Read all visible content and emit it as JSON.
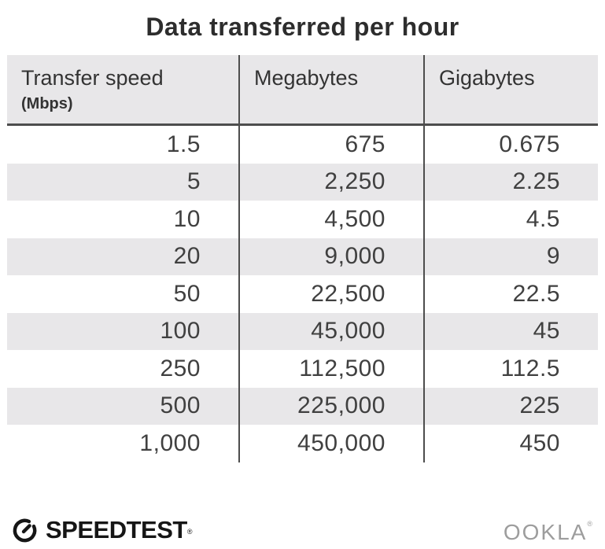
{
  "title": "Data transferred per hour",
  "table": {
    "columns": [
      {
        "label": "Transfer speed",
        "sublabel": "(Mbps)"
      },
      {
        "label": "Megabytes"
      },
      {
        "label": "Gigabytes"
      }
    ],
    "rows": [
      [
        "1.5",
        "675",
        "0.675"
      ],
      [
        "5",
        "2,250",
        "2.25"
      ],
      [
        "10",
        "4,500",
        "4.5"
      ],
      [
        "20",
        "9,000",
        "9"
      ],
      [
        "50",
        "22,500",
        "22.5"
      ],
      [
        "100",
        "45,000",
        "45"
      ],
      [
        "250",
        "112,500",
        "112.5"
      ],
      [
        "500",
        "225,000",
        "225"
      ],
      [
        "1,000",
        "450,000",
        "450"
      ]
    ]
  },
  "chart_data": {
    "type": "table",
    "title": "Data transferred per hour",
    "columns": [
      "Transfer speed (Mbps)",
      "Megabytes",
      "Gigabytes"
    ],
    "rows": [
      [
        1.5,
        675,
        0.675
      ],
      [
        5,
        2250,
        2.25
      ],
      [
        10,
        4500,
        4.5
      ],
      [
        20,
        9000,
        9
      ],
      [
        50,
        22500,
        22.5
      ],
      [
        100,
        45000,
        45
      ],
      [
        250,
        112500,
        112.5
      ],
      [
        500,
        225000,
        225
      ],
      [
        1000,
        450000,
        450
      ]
    ]
  },
  "footer": {
    "speedtest_label": "SPEEDTEST",
    "ookla_label": "OOKLA",
    "registered_mark": "®"
  },
  "colors": {
    "header_bg": "#e8e7e9",
    "stripe_bg": "#e8e7e9",
    "divider": "#4d4d4d",
    "title_text": "#2d2d2d",
    "cell_text": "#404040",
    "speedtest_text": "#161616",
    "ookla_text": "#9d9d9d"
  }
}
